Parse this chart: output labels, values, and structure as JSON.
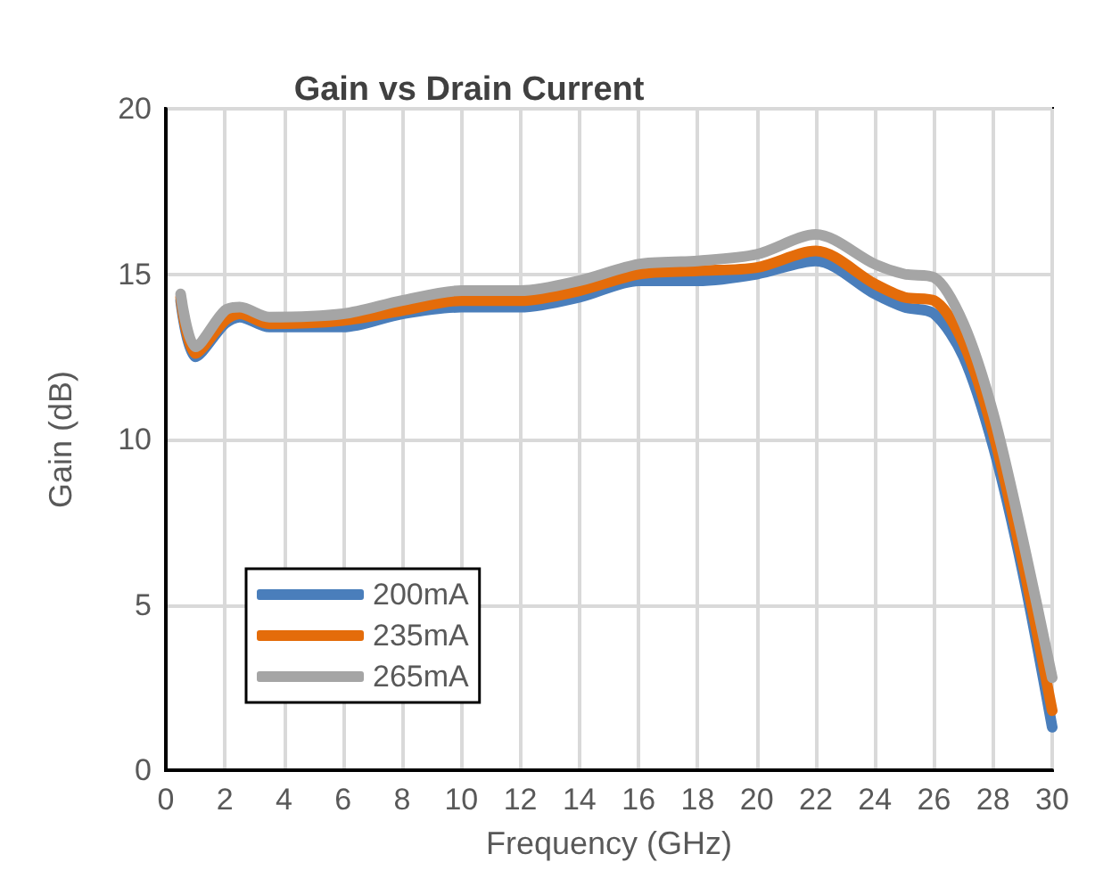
{
  "chart_data": {
    "type": "line",
    "title": "Gain vs Drain Current",
    "xlabel": "Frequency (GHz)",
    "ylabel": "Gain (dB)",
    "x": [
      0.5,
      1,
      2,
      2.5,
      3.5,
      6,
      8,
      10,
      12,
      14,
      16,
      18,
      20,
      22,
      24,
      25,
      26,
      27,
      28,
      29,
      30
    ],
    "series": [
      {
        "name": "200mA",
        "color": "#4a7ebb",
        "values": [
          14.2,
          12.5,
          13.5,
          13.7,
          13.4,
          13.4,
          13.8,
          14.0,
          14.0,
          14.3,
          14.8,
          14.8,
          15.0,
          15.4,
          14.4,
          14.0,
          13.8,
          12.5,
          9.8,
          6.0,
          1.3
        ]
      },
      {
        "name": "235mA",
        "color": "#e46c0a",
        "values": [
          14.3,
          12.6,
          13.6,
          13.8,
          13.5,
          13.6,
          13.9,
          14.2,
          14.2,
          14.5,
          15.0,
          15.1,
          15.2,
          15.7,
          14.7,
          14.3,
          14.2,
          12.9,
          10.2,
          6.3,
          1.8
        ]
      },
      {
        "name": "265mA",
        "color": "#a5a5a5",
        "values": [
          14.4,
          12.8,
          13.9,
          14.0,
          13.7,
          13.8,
          14.2,
          14.5,
          14.5,
          14.8,
          15.3,
          15.4,
          15.6,
          16.2,
          15.3,
          15.0,
          14.9,
          13.5,
          10.8,
          7.0,
          2.8
        ]
      }
    ],
    "xlim": [
      0,
      30
    ],
    "xticks": [
      0,
      2,
      4,
      6,
      8,
      10,
      12,
      14,
      16,
      18,
      20,
      22,
      24,
      26,
      28,
      30
    ],
    "ylim": [
      0,
      20
    ],
    "yticks": [
      0,
      5,
      10,
      15,
      20
    ],
    "grid": true,
    "legend": "bottom left",
    "marker": "none",
    "line_style": "solid"
  }
}
